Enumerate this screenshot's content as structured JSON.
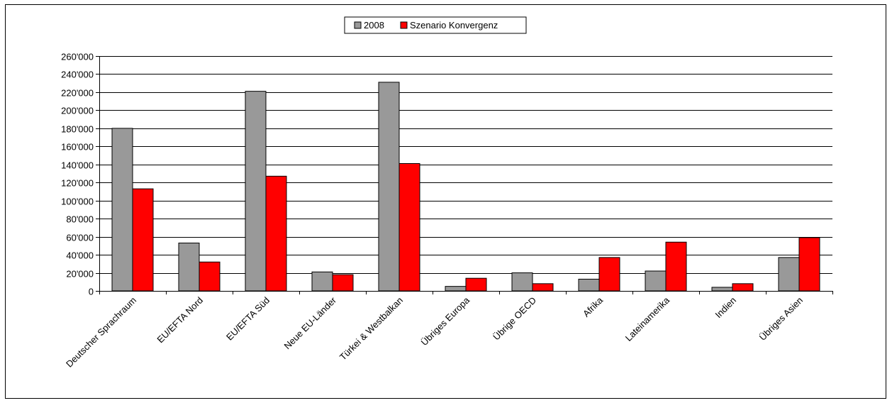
{
  "chart_data": {
    "type": "bar",
    "categories": [
      "Deutscher Sprachraum",
      "EU/EFTA Nord",
      "EU/EFTA Süd",
      "Neue EU-Länder",
      "Türkei & Westbalkan",
      "Übriges Europa",
      "Übrige OECD",
      "Afrika",
      "Lateinamerika",
      "Indien",
      "Übriges Asien"
    ],
    "series": [
      {
        "name": "2008",
        "color": "#999999",
        "values": [
          180000,
          53000,
          221000,
          21000,
          231000,
          5000,
          20000,
          13000,
          22000,
          4000,
          37000
        ]
      },
      {
        "name": "Szenario Konvergenz",
        "color": "#ff0000",
        "values": [
          113000,
          32000,
          127000,
          18000,
          141000,
          14000,
          8000,
          37000,
          54000,
          8000,
          59000
        ]
      }
    ],
    "ylim": [
      0,
      260000
    ],
    "yticks": [
      0,
      20000,
      40000,
      60000,
      80000,
      100000,
      120000,
      140000,
      160000,
      180000,
      200000,
      220000,
      240000,
      260000
    ],
    "ytick_labels": [
      "0",
      "20'000",
      "40'000",
      "60'000",
      "80'000",
      "100'000",
      "120'000",
      "140'000",
      "160'000",
      "180'000",
      "200'000",
      "220'000",
      "240'000",
      "260'000"
    ],
    "grid": true,
    "legend_position": "top-center"
  }
}
